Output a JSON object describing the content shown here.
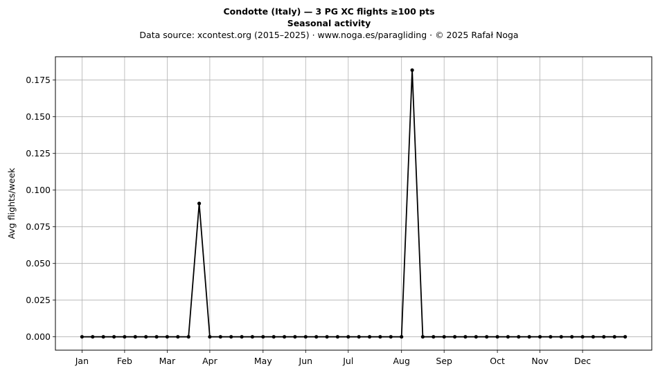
{
  "header": {
    "title": "Condotte (Italy)  —  3 PG XC flights ≥100 pts",
    "subtitle": "Seasonal activity",
    "source": "Data source: xcontest.org (2015–2025)  ·  www.noga.es/paragliding  ·  © 2025 Rafał Noga"
  },
  "chart_data": {
    "type": "line",
    "title": "Condotte (Italy)  —  3 PG XC flights ≥100 pts",
    "subtitle": "Seasonal activity",
    "xlabel": "",
    "ylabel": "Avg flights/week",
    "xlim": [
      -2.5,
      53.5
    ],
    "ylim": [
      -0.0091,
      0.1909
    ],
    "grid": true,
    "x_ticks": [
      {
        "label": "Jan",
        "x": 0
      },
      {
        "label": "Feb",
        "x": 4
      },
      {
        "label": "Mar",
        "x": 8
      },
      {
        "label": "Apr",
        "x": 12
      },
      {
        "label": "May",
        "x": 17
      },
      {
        "label": "Jun",
        "x": 21
      },
      {
        "label": "Jul",
        "x": 25
      },
      {
        "label": "Aug",
        "x": 30
      },
      {
        "label": "Sep",
        "x": 34
      },
      {
        "label": "Oct",
        "x": 39
      },
      {
        "label": "Nov",
        "x": 43
      },
      {
        "label": "Dec",
        "x": 47
      }
    ],
    "y_ticks": [
      {
        "label": "0.000",
        "y": 0
      },
      {
        "label": "0.025",
        "y": 0.025
      },
      {
        "label": "0.050",
        "y": 0.05
      },
      {
        "label": "0.075",
        "y": 0.075
      },
      {
        "label": "0.100",
        "y": 0.1
      },
      {
        "label": "0.125",
        "y": 0.125
      },
      {
        "label": "0.150",
        "y": 0.15
      },
      {
        "label": "0.175",
        "y": 0.175
      }
    ],
    "series": [
      {
        "color": "#000000",
        "x": [
          0,
          1,
          2,
          3,
          4,
          5,
          6,
          7,
          8,
          9,
          10,
          11,
          12,
          13,
          14,
          15,
          16,
          17,
          18,
          19,
          20,
          21,
          22,
          23,
          24,
          25,
          26,
          27,
          28,
          29,
          30,
          31,
          32,
          33,
          34,
          35,
          36,
          37,
          38,
          39,
          40,
          41,
          42,
          43,
          44,
          45,
          46,
          47,
          48,
          49,
          50,
          51
        ],
        "y": [
          0,
          0,
          0,
          0,
          0,
          0,
          0,
          0,
          0,
          0,
          0,
          0.0909,
          0,
          0,
          0,
          0,
          0,
          0,
          0,
          0,
          0,
          0,
          0,
          0,
          0,
          0,
          0,
          0,
          0,
          0,
          0,
          0.1818,
          0,
          0,
          0,
          0,
          0,
          0,
          0,
          0,
          0,
          0,
          0,
          0,
          0,
          0,
          0,
          0,
          0,
          0,
          0,
          0
        ]
      }
    ]
  }
}
